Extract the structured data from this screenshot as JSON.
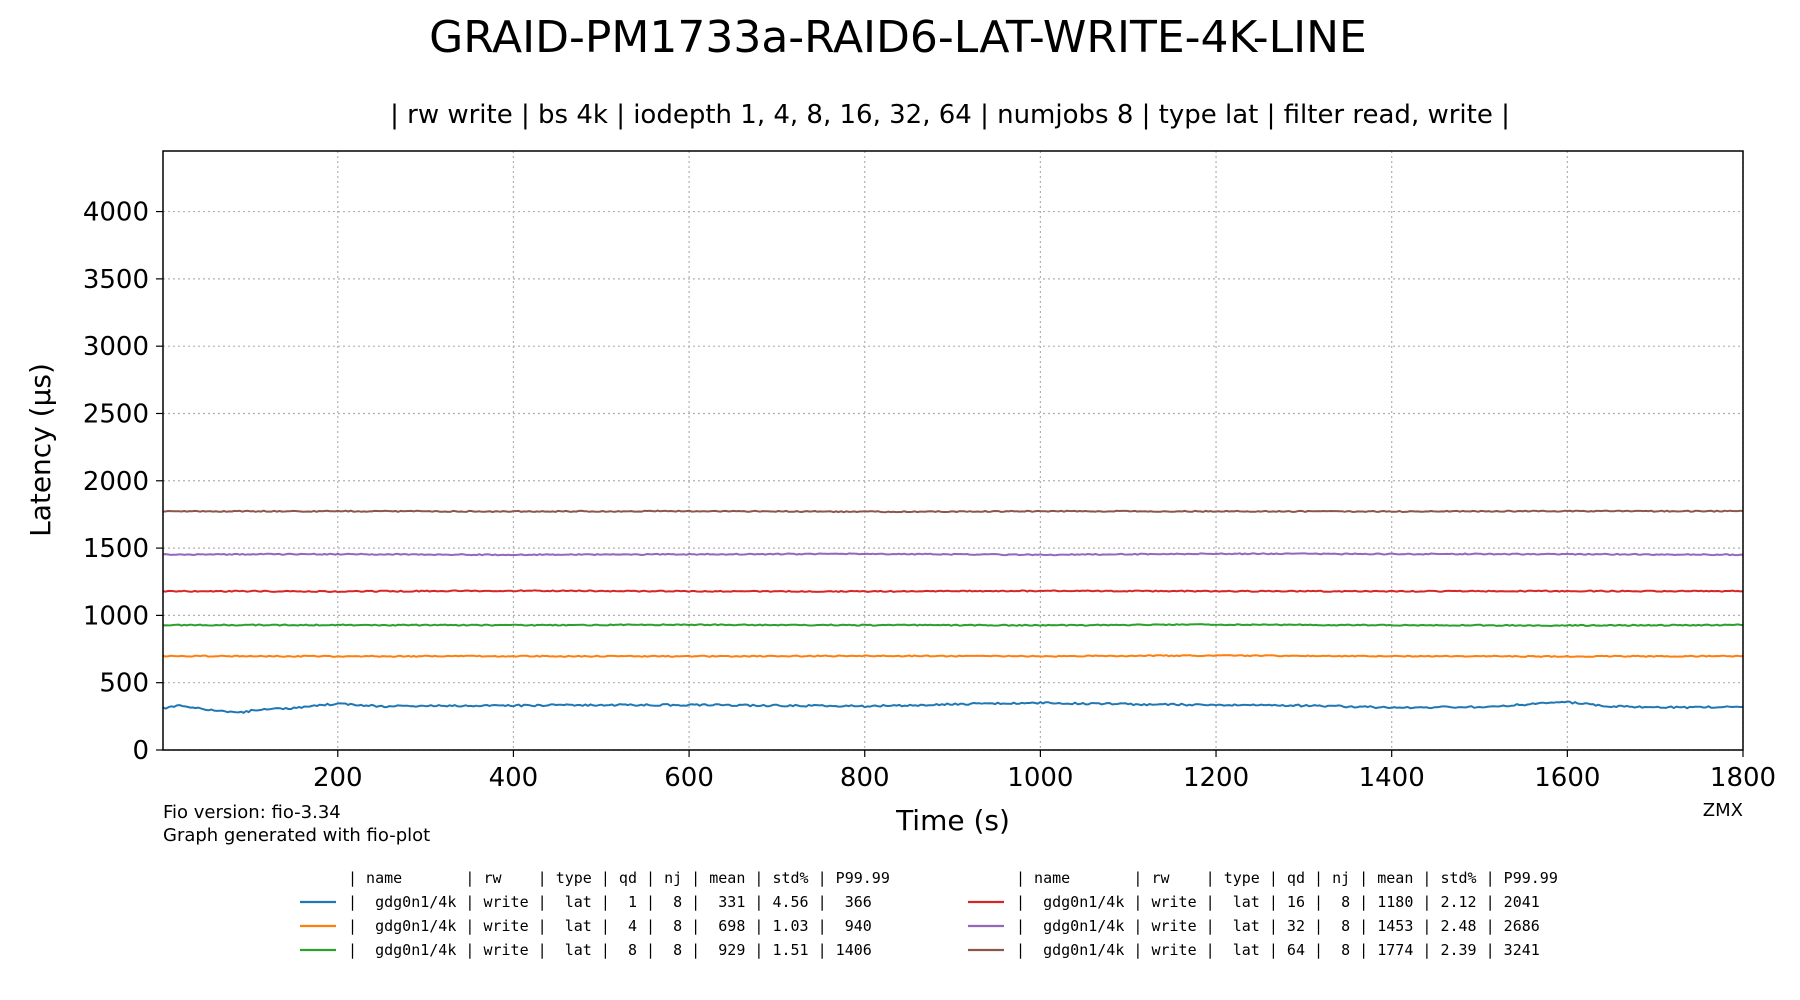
{
  "chart_data": {
    "type": "line",
    "title": "GRAID-PM1733a-RAID6-LAT-WRITE-4K-LINE",
    "subtitle": "| rw write | bs 4k | iodepth 1, 4, 8, 16, 32, 64 | numjobs 8 | type lat | filter read, write |",
    "xlabel": "Time (s)",
    "ylabel": "Latency (µs)",
    "xlim": [
      1,
      1800
    ],
    "ylim": [
      0,
      4450
    ],
    "xticks": [
      200,
      400,
      600,
      800,
      1000,
      1200,
      1400,
      1600,
      1800
    ],
    "yticks": [
      0,
      500,
      1000,
      1500,
      2000,
      2500,
      3000,
      3500,
      4000
    ],
    "grid": true,
    "series": [
      {
        "qd": 1,
        "color": "#1f77b4",
        "points": [
          [
            1,
            310
          ],
          [
            20,
            330
          ],
          [
            50,
            300
          ],
          [
            90,
            280
          ],
          [
            110,
            300
          ],
          [
            150,
            310
          ],
          [
            200,
            345
          ],
          [
            250,
            325
          ],
          [
            300,
            330
          ],
          [
            400,
            330
          ],
          [
            500,
            335
          ],
          [
            600,
            335
          ],
          [
            700,
            330
          ],
          [
            800,
            325
          ],
          [
            900,
            340
          ],
          [
            1000,
            350
          ],
          [
            1100,
            340
          ],
          [
            1200,
            335
          ],
          [
            1300,
            330
          ],
          [
            1400,
            315
          ],
          [
            1500,
            320
          ],
          [
            1600,
            355
          ],
          [
            1650,
            325
          ],
          [
            1700,
            315
          ],
          [
            1800,
            320
          ]
        ]
      },
      {
        "qd": 4,
        "color": "#ff7f0e",
        "points": [
          [
            1,
            698
          ],
          [
            200,
            696
          ],
          [
            400,
            697
          ],
          [
            600,
            696
          ],
          [
            800,
            699
          ],
          [
            1000,
            697
          ],
          [
            1200,
            702
          ],
          [
            1400,
            697
          ],
          [
            1600,
            695
          ],
          [
            1800,
            698
          ]
        ]
      },
      {
        "qd": 8,
        "color": "#2ca02c",
        "points": [
          [
            1,
            928
          ],
          [
            200,
            929
          ],
          [
            400,
            927
          ],
          [
            600,
            931
          ],
          [
            800,
            928
          ],
          [
            1000,
            926
          ],
          [
            1200,
            932
          ],
          [
            1400,
            927
          ],
          [
            1600,
            925
          ],
          [
            1800,
            929
          ]
        ]
      },
      {
        "qd": 16,
        "color": "#d62728",
        "points": [
          [
            1,
            1180
          ],
          [
            200,
            1178
          ],
          [
            400,
            1183
          ],
          [
            600,
            1180
          ],
          [
            800,
            1178
          ],
          [
            1000,
            1182
          ],
          [
            1200,
            1180
          ],
          [
            1400,
            1179
          ],
          [
            1600,
            1181
          ],
          [
            1800,
            1180
          ]
        ]
      },
      {
        "qd": 32,
        "color": "#9467bd",
        "points": [
          [
            1,
            1452
          ],
          [
            200,
            1455
          ],
          [
            400,
            1450
          ],
          [
            600,
            1454
          ],
          [
            800,
            1457
          ],
          [
            1000,
            1450
          ],
          [
            1200,
            1458
          ],
          [
            1400,
            1456
          ],
          [
            1600,
            1455
          ],
          [
            1800,
            1450
          ]
        ]
      },
      {
        "qd": 64,
        "color": "#8c564b",
        "points": [
          [
            1,
            1773
          ],
          [
            200,
            1774
          ],
          [
            400,
            1772
          ],
          [
            600,
            1775
          ],
          [
            800,
            1770
          ],
          [
            1000,
            1774
          ],
          [
            1200,
            1773
          ],
          [
            1400,
            1772
          ],
          [
            1600,
            1775
          ],
          [
            1800,
            1774
          ]
        ]
      }
    ],
    "legend_header": "| name       | rw    | type | qd | nj | mean | std% | P99.99",
    "legend_rows": [
      {
        "color": "#1f77b4",
        "text": "|  gdg0n1/4k | write |  lat |  1 |  8 |  331 | 4.56 |  366"
      },
      {
        "color": "#ff7f0e",
        "text": "|  gdg0n1/4k | write |  lat |  4 |  8 |  698 | 1.03 |  940"
      },
      {
        "color": "#2ca02c",
        "text": "|  gdg0n1/4k | write |  lat |  8 |  8 |  929 | 1.51 | 1406"
      },
      {
        "color": "#d62728",
        "text": "|  gdg0n1/4k | write |  lat | 16 |  8 | 1180 | 2.12 | 2041"
      },
      {
        "color": "#9467bd",
        "text": "|  gdg0n1/4k | write |  lat | 32 |  8 | 1453 | 2.48 | 2686"
      },
      {
        "color": "#8c564b",
        "text": "|  gdg0n1/4k | write |  lat | 64 |  8 | 1774 | 2.39 | 3241"
      }
    ],
    "legend_placement": "below"
  },
  "footer": {
    "fio_version": "Fio version: fio-3.34",
    "generated_with": "Graph generated with fio-plot",
    "author": "ZMX"
  }
}
